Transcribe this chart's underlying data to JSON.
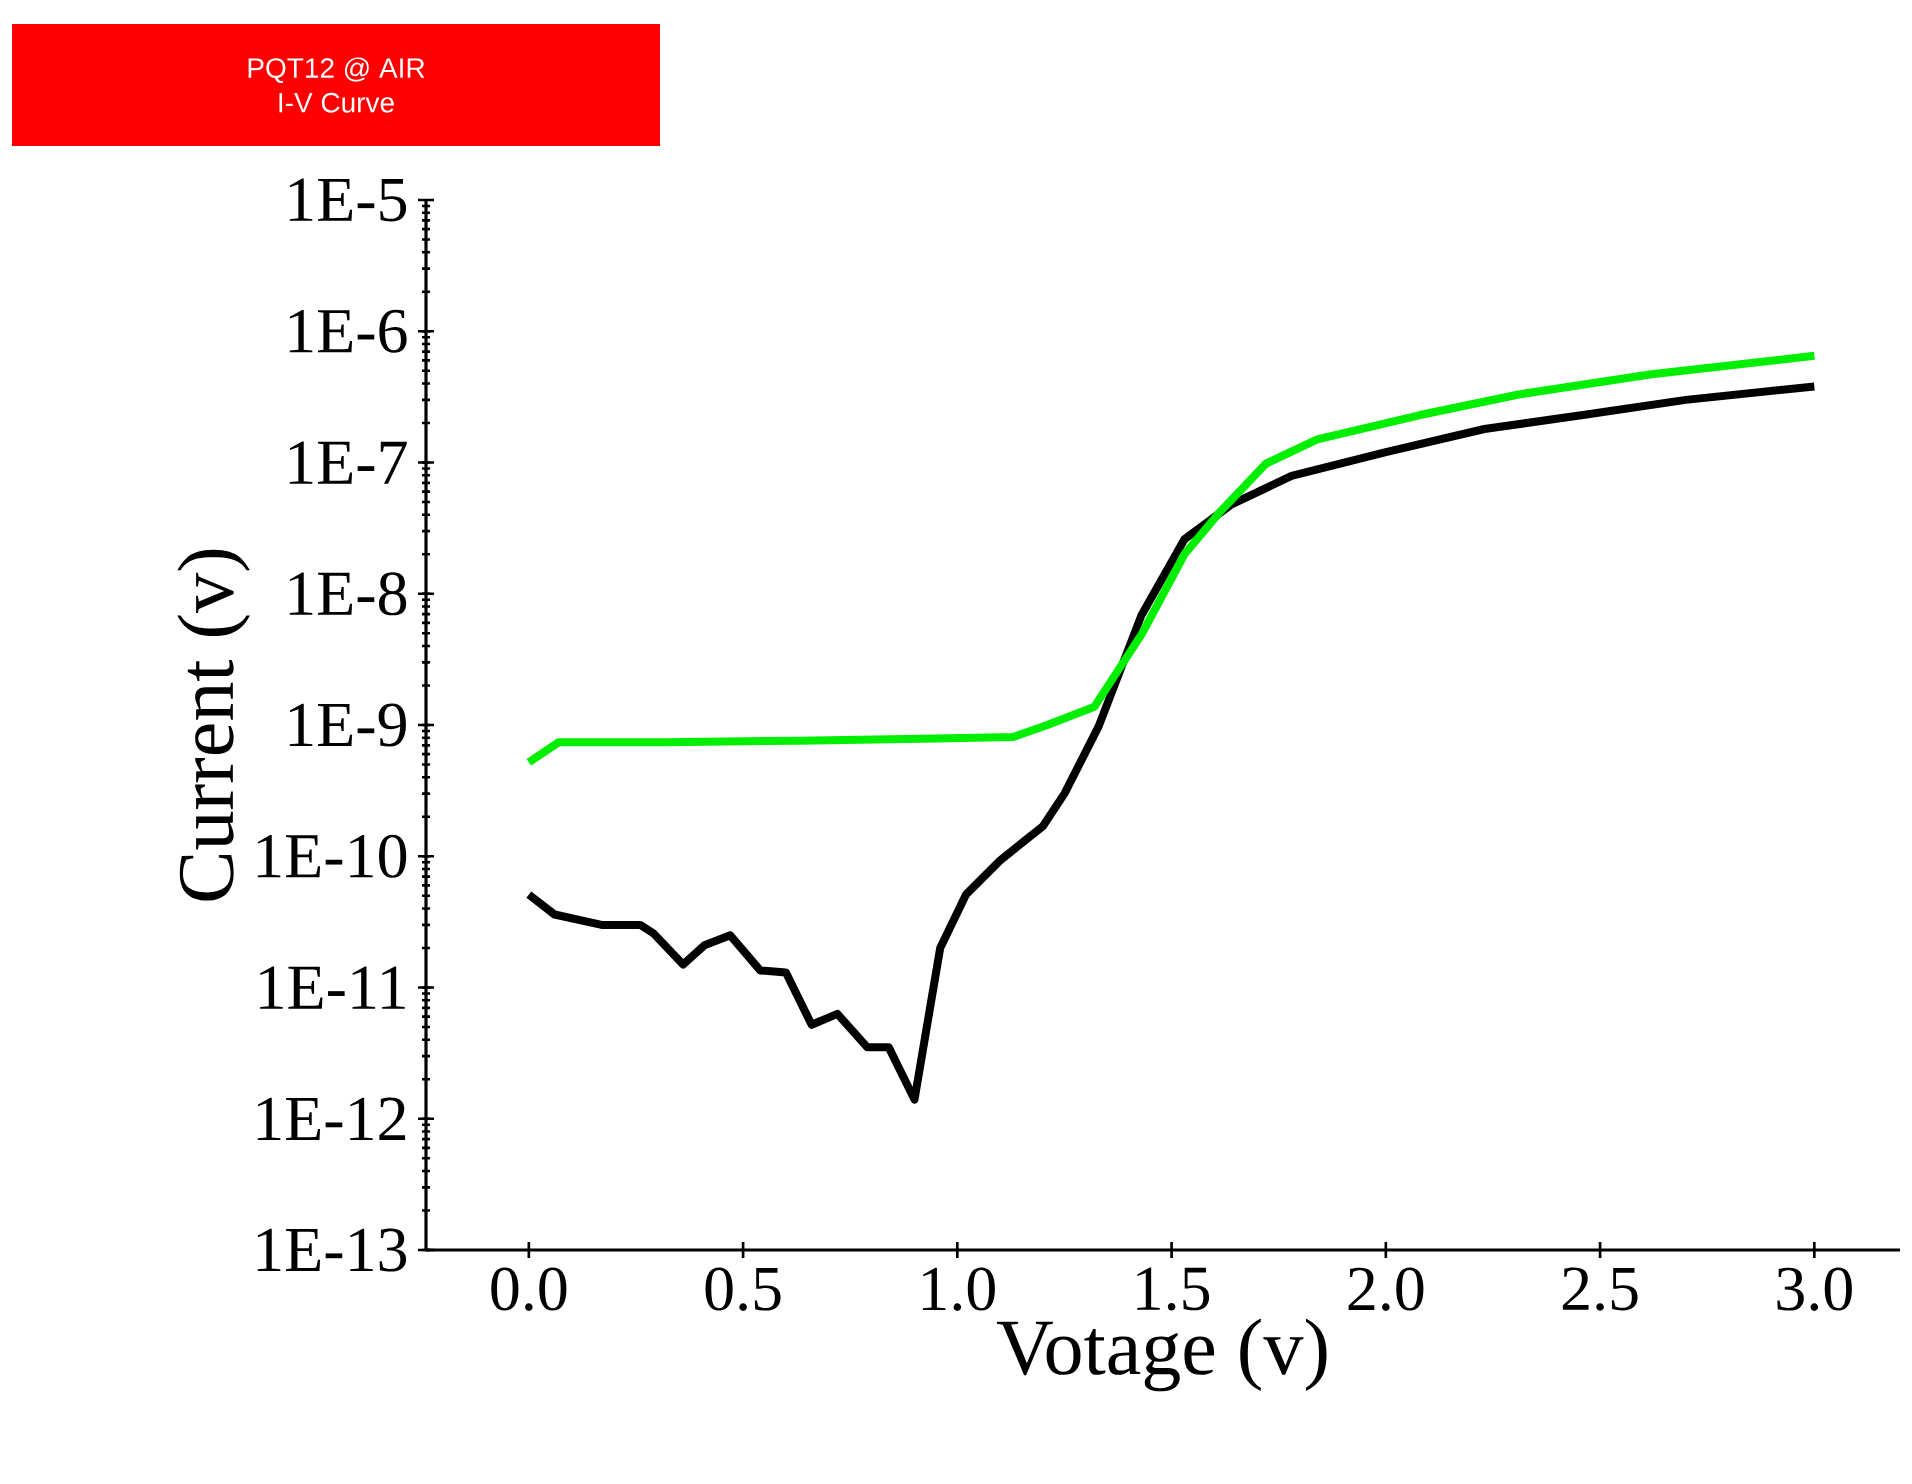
{
  "chart_data": {
    "type": "line",
    "title": "PQT12 @ AIR",
    "subtitle": "I-V Curve",
    "xlabel": "Votage (v)",
    "ylabel": "Current (v)",
    "log": "y",
    "xlim": [
      -0.24,
      3.2
    ],
    "xticks": [
      {
        "value": 0,
        "label": "0.0"
      },
      {
        "value": 0.5,
        "label": "0.5"
      },
      {
        "value": 1,
        "label": "1.0"
      },
      {
        "value": 1.5,
        "label": "1.5"
      },
      {
        "value": 2,
        "label": "2.0"
      },
      {
        "value": 2.5,
        "label": "2.5"
      },
      {
        "value": 3,
        "label": "3.0"
      }
    ],
    "ylim": [
      1e-13,
      1e-05
    ],
    "yticks": [
      {
        "value": 1e-13,
        "label": "1E-13"
      },
      {
        "value": 1e-12,
        "label": "1E-12"
      },
      {
        "value": 1e-11,
        "label": "1E-11"
      },
      {
        "value": 1e-10,
        "label": "1E-10"
      },
      {
        "value": 1e-09,
        "label": "1E-9"
      },
      {
        "value": 1e-08,
        "label": "1E-8"
      },
      {
        "value": 1e-07,
        "label": "1E-7"
      },
      {
        "value": 1e-06,
        "label": "1E-6"
      },
      {
        "value": 1e-05,
        "label": "1E-5"
      }
    ],
    "series": [
      {
        "color": "#000000",
        "x": [
          0,
          0.06,
          0.17,
          0.26,
          0.29,
          0.36,
          0.41,
          0.47,
          0.54,
          0.6,
          0.66,
          0.72,
          0.79,
          0.84,
          0.9,
          0.96,
          1.02,
          1.1,
          1.2,
          1.25,
          1.33,
          1.43,
          1.53,
          1.64,
          1.78,
          2.0,
          2.23,
          2.46,
          2.7,
          3.0
        ],
        "values": [
          5.1e-11,
          3.6e-11,
          3e-11,
          3e-11,
          2.6e-11,
          1.5e-11,
          2.1e-11,
          2.5e-11,
          1.35e-11,
          1.3e-11,
          5.2e-12,
          6.3e-12,
          3.5e-12,
          3.5e-12,
          1.4e-12,
          2e-11,
          5.1e-11,
          9.3e-11,
          1.7e-10,
          3e-10,
          9.8e-10,
          6.9e-09,
          2.6e-08,
          4.8e-08,
          7.9e-08,
          1.2e-07,
          1.8e-07,
          2.3e-07,
          3e-07,
          3.8e-07
        ]
      },
      {
        "color": "#00ee00",
        "x": [
          0,
          0.07,
          0.32,
          0.63,
          0.95,
          1.13,
          1.21,
          1.32,
          1.43,
          1.53,
          1.61,
          1.72,
          1.84,
          2.08,
          2.31,
          2.62,
          3.0
        ],
        "values": [
          5.2e-10,
          7.4e-10,
          7.4e-10,
          7.6e-10,
          7.9e-10,
          8.1e-10,
          1e-09,
          1.38e-09,
          4.9e-09,
          2e-08,
          4.1e-08,
          9.8e-08,
          1.5e-07,
          2.3e-07,
          3.3e-07,
          4.7e-07,
          6.5e-07
        ]
      }
    ]
  }
}
